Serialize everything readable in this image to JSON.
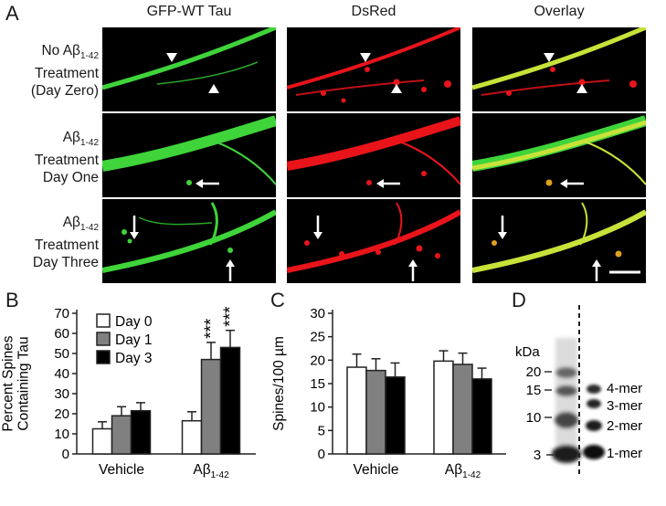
{
  "figure": {
    "panel_labels": {
      "a": "A",
      "b": "B",
      "c": "C",
      "d": "D"
    },
    "columns": [
      "GFP-WT Tau",
      "DsRed",
      "Overlay"
    ],
    "rows": [
      {
        "lines": [
          "No Aβ",
          "Treatment",
          "(Day Zero)"
        ],
        "sub": "1-42"
      },
      {
        "lines": [
          "Aβ",
          "Treatment",
          "Day One"
        ],
        "sub": "1-42"
      },
      {
        "lines": [
          "Aβ",
          "Treatment",
          "Day Three"
        ],
        "sub": "1-42"
      }
    ],
    "channel_colors": {
      "green": "#3fd43a",
      "red": "#e8141a",
      "overlay": "#c8e23a"
    }
  },
  "chart_data": [
    {
      "type": "bar",
      "panel": "B",
      "ylabel": "Percent Spines Containing Tau",
      "ylabel_lines": [
        "Percent Spines",
        "Containing Tau"
      ],
      "ylim": [
        0,
        70
      ],
      "yticks": [
        0,
        10,
        20,
        30,
        40,
        50,
        60,
        70
      ],
      "categories": [
        "Vehicle",
        "Aβ"
      ],
      "category_sub": [
        "",
        "1-42"
      ],
      "legend_placement": "top-left",
      "series": [
        {
          "name": "Day 0",
          "color": "#ffffff",
          "values": [
            12.5,
            16.5
          ],
          "errors": [
            3.5,
            4.5
          ]
        },
        {
          "name": "Day 1",
          "color": "#808080",
          "values": [
            19,
            47
          ],
          "errors": [
            4.5,
            8.5
          ]
        },
        {
          "name": "Day 3",
          "color": "#000000",
          "values": [
            21.5,
            53
          ],
          "errors": [
            4,
            8.5
          ]
        }
      ],
      "significance": [
        {
          "category": 1,
          "series": 1,
          "label": "***"
        },
        {
          "category": 1,
          "series": 2,
          "label": "***"
        }
      ]
    },
    {
      "type": "bar",
      "panel": "C",
      "ylabel": "Spines/100 µm",
      "ylim": [
        0,
        30
      ],
      "yticks": [
        0,
        5,
        10,
        15,
        20,
        25,
        30
      ],
      "categories": [
        "Vehicle",
        "Aβ"
      ],
      "category_sub": [
        "",
        "1-42"
      ],
      "series": [
        {
          "color": "#ffffff",
          "values": [
            18.5,
            19.8
          ],
          "errors": [
            2.8,
            2.2
          ]
        },
        {
          "color": "#808080",
          "values": [
            17.8,
            19.1
          ],
          "errors": [
            2.5,
            2.4
          ]
        },
        {
          "color": "#000000",
          "values": [
            16.4,
            16.0
          ],
          "errors": [
            3.0,
            2.3
          ]
        }
      ]
    }
  ],
  "western_blot": {
    "unit": "kDa",
    "markers": [
      "20",
      "15",
      "10",
      "3"
    ],
    "bands": [
      "4-mer",
      "3-mer",
      "2-mer",
      "1-mer"
    ]
  }
}
